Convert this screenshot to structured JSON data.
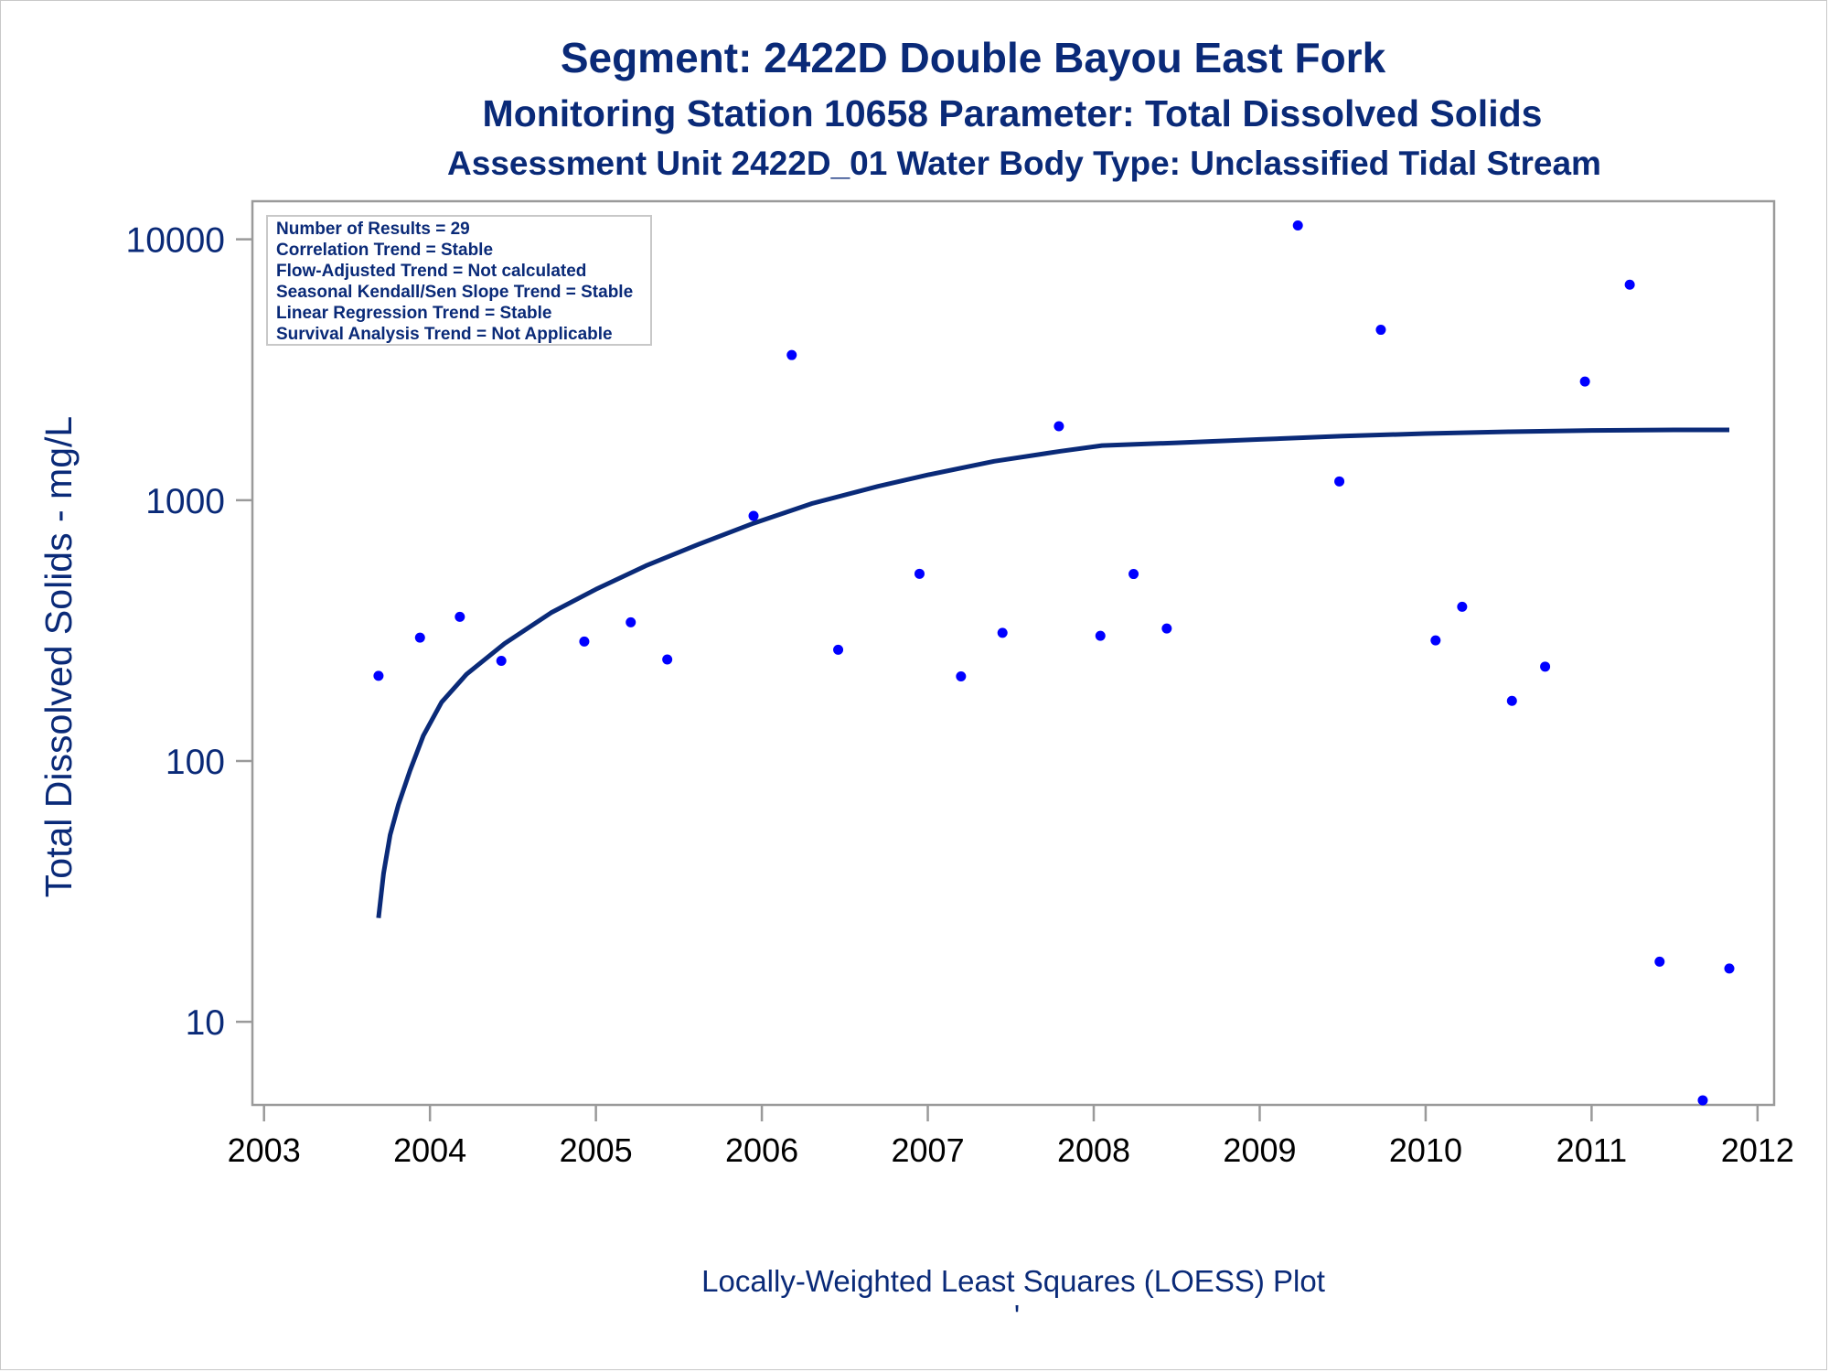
{
  "chart_data": {
    "type": "scatter",
    "title": "Segment: 2422D  Double Bayou East Fork",
    "subtitle": "Monitoring Station 10658 Parameter: Total Dissolved Solids",
    "subtitle2": "Assessment Unit 2422D_01   Water Body Type: Unclassified Tidal Stream",
    "ylabel": "Total Dissolved Solids - mg/L",
    "footnote": "Locally-Weighted Least Squares (LOESS) Plot",
    "footnote_mark": "'",
    "y_scale": "log",
    "ylim": [
      4.8,
      14000
    ],
    "xlim": [
      2002.93,
      2012.1
    ],
    "x_ticks": [
      "2003",
      "2004",
      "2005",
      "2006",
      "2007",
      "2008",
      "2009",
      "2010",
      "2011",
      "2012"
    ],
    "y_ticks": [
      "10",
      "100",
      "1000",
      "10000"
    ],
    "legend_placement": "top-left",
    "stats": [
      "Number of Results = 29",
      "Correlation Trend = Stable",
      "Flow-Adjusted Trend = Not calculated",
      "Seasonal Kendall/Sen Slope Trend = Stable",
      "Linear Regression Trend = Stable",
      "Survival Analysis Trend = Not Applicable"
    ],
    "points": [
      {
        "x": 2003.69,
        "y": 212
      },
      {
        "x": 2003.94,
        "y": 297
      },
      {
        "x": 2004.18,
        "y": 357
      },
      {
        "x": 2004.43,
        "y": 242
      },
      {
        "x": 2004.93,
        "y": 287
      },
      {
        "x": 2005.21,
        "y": 340
      },
      {
        "x": 2005.43,
        "y": 245
      },
      {
        "x": 2005.95,
        "y": 870
      },
      {
        "x": 2006.18,
        "y": 3600
      },
      {
        "x": 2006.46,
        "y": 267
      },
      {
        "x": 2006.95,
        "y": 522
      },
      {
        "x": 2007.2,
        "y": 211
      },
      {
        "x": 2007.45,
        "y": 310
      },
      {
        "x": 2007.79,
        "y": 1920
      },
      {
        "x": 2008.04,
        "y": 302
      },
      {
        "x": 2008.24,
        "y": 521
      },
      {
        "x": 2008.44,
        "y": 322
      },
      {
        "x": 2009.23,
        "y": 11300
      },
      {
        "x": 2009.48,
        "y": 1180
      },
      {
        "x": 2009.73,
        "y": 4500
      },
      {
        "x": 2010.06,
        "y": 290
      },
      {
        "x": 2010.22,
        "y": 390
      },
      {
        "x": 2010.52,
        "y": 170
      },
      {
        "x": 2010.72,
        "y": 230
      },
      {
        "x": 2010.96,
        "y": 2850
      },
      {
        "x": 2011.23,
        "y": 6700
      },
      {
        "x": 2011.41,
        "y": 17
      },
      {
        "x": 2011.67,
        "y": 5
      },
      {
        "x": 2011.83,
        "y": 16
      }
    ],
    "loess": [
      {
        "x": 2003.69,
        "y": 25
      },
      {
        "x": 2003.72,
        "y": 37
      },
      {
        "x": 2003.76,
        "y": 52
      },
      {
        "x": 2003.81,
        "y": 68
      },
      {
        "x": 2003.88,
        "y": 92
      },
      {
        "x": 2003.96,
        "y": 125
      },
      {
        "x": 2004.07,
        "y": 168
      },
      {
        "x": 2004.22,
        "y": 215
      },
      {
        "x": 2004.45,
        "y": 282
      },
      {
        "x": 2004.73,
        "y": 370
      },
      {
        "x": 2005.0,
        "y": 455
      },
      {
        "x": 2005.3,
        "y": 560
      },
      {
        "x": 2005.6,
        "y": 670
      },
      {
        "x": 2005.95,
        "y": 815
      },
      {
        "x": 2006.3,
        "y": 970
      },
      {
        "x": 2006.7,
        "y": 1130
      },
      {
        "x": 2007.0,
        "y": 1250
      },
      {
        "x": 2007.4,
        "y": 1410
      },
      {
        "x": 2007.8,
        "y": 1540
      },
      {
        "x": 2008.05,
        "y": 1620
      },
      {
        "x": 2008.5,
        "y": 1660
      },
      {
        "x": 2009.0,
        "y": 1710
      },
      {
        "x": 2009.5,
        "y": 1760
      },
      {
        "x": 2010.0,
        "y": 1800
      },
      {
        "x": 2010.5,
        "y": 1830
      },
      {
        "x": 2011.0,
        "y": 1850
      },
      {
        "x": 2011.5,
        "y": 1860
      },
      {
        "x": 2011.83,
        "y": 1860
      }
    ],
    "colors": {
      "title": "#0a2a78",
      "points": "#0000ff",
      "loess": "#0a2a78",
      "axis": "#9a9a9a"
    }
  }
}
